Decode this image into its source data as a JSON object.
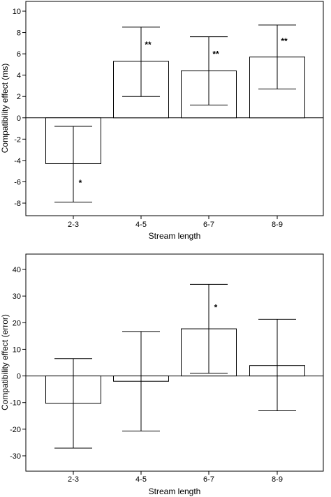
{
  "chart_data": [
    {
      "type": "bar",
      "title": "",
      "xlabel": "Stream length",
      "ylabel": "Compatibility effect (ms)",
      "categories": [
        "2-3",
        "4-5",
        "6-7",
        "8-9"
      ],
      "values": [
        -4.3,
        5.3,
        4.4,
        5.7
      ],
      "error_low": [
        -7.9,
        2.0,
        1.2,
        2.7
      ],
      "error_high": [
        -0.8,
        8.5,
        7.6,
        8.7
      ],
      "significance": [
        "*",
        "**",
        "**",
        "**"
      ],
      "ylim": [
        -9,
        11
      ],
      "yticks": [
        -8,
        -6,
        -4,
        -2,
        0,
        2,
        4,
        6,
        8,
        10
      ],
      "grid": false,
      "legend": "none"
    },
    {
      "type": "bar",
      "title": "",
      "xlabel": "Stream length",
      "ylabel": "Compatibility effect (error)",
      "categories": [
        "2-3",
        "4-5",
        "6-7",
        "8-9"
      ],
      "values": [
        -10.3,
        -2.0,
        17.7,
        3.9
      ],
      "error_low": [
        -27.1,
        -20.7,
        1.0,
        -13.1
      ],
      "error_high": [
        6.5,
        16.7,
        34.4,
        21.3
      ],
      "significance": [
        "",
        "",
        "*",
        ""
      ],
      "ylim": [
        -35,
        45
      ],
      "yticks": [
        -30,
        -20,
        -10,
        0,
        10,
        20,
        30,
        40
      ],
      "grid": false,
      "legend": "none"
    }
  ]
}
